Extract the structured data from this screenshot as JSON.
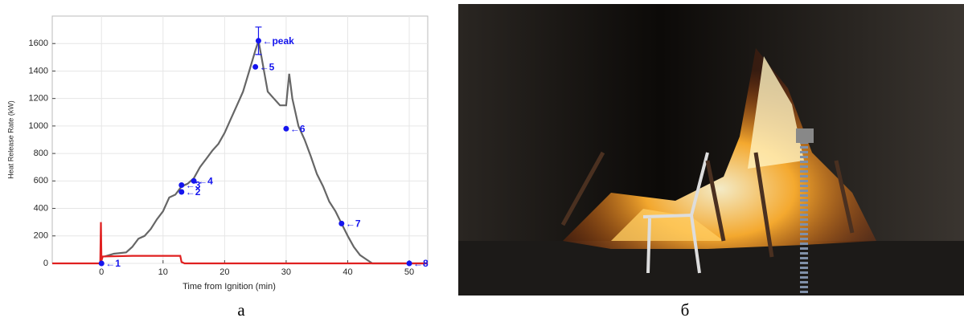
{
  "chart_data": {
    "type": "line",
    "xlabel": "Time from Ignition (min)",
    "ylabel": "Heat Release Rate (kW)",
    "xlim": [
      -8,
      53
    ],
    "ylim": [
      0,
      1800
    ],
    "xticks": [
      0,
      10,
      20,
      30,
      40,
      50
    ],
    "yticks": [
      0,
      200,
      400,
      600,
      800,
      1000,
      1200,
      1400,
      1600
    ],
    "grid": true,
    "series": [
      {
        "color": "#666666",
        "x": [
          0.5,
          2,
          4,
          5,
          6,
          7,
          8,
          9,
          10,
          11,
          12,
          13,
          14,
          15,
          16,
          17,
          18,
          19,
          20,
          21,
          22,
          23,
          24,
          25,
          25.5,
          26,
          27,
          28,
          29,
          30,
          30.5,
          31,
          32,
          33,
          34,
          35,
          36,
          37,
          38,
          39,
          40,
          41,
          42,
          43,
          44,
          53
        ],
        "values": [
          50,
          70,
          80,
          120,
          180,
          200,
          250,
          320,
          380,
          480,
          500,
          560,
          580,
          620,
          700,
          760,
          820,
          870,
          950,
          1050,
          1150,
          1250,
          1400,
          1550,
          1620,
          1500,
          1250,
          1200,
          1150,
          1150,
          1380,
          1200,
          1000,
          900,
          780,
          650,
          560,
          450,
          380,
          290,
          200,
          120,
          60,
          30,
          0,
          0
        ]
      },
      {
        "color": "#e02020",
        "x": [
          -8,
          -0.2,
          -0.1,
          0,
          0.2,
          5,
          12.8,
          13,
          13.5,
          53
        ],
        "values": [
          0,
          0,
          300,
          20,
          50,
          55,
          55,
          10,
          0,
          0
        ]
      }
    ],
    "points": {
      "color": "#1515ee",
      "x": [
        0,
        13,
        13,
        15,
        25,
        30,
        39,
        50,
        25.5
      ],
      "values": [
        0,
        520,
        570,
        600,
        1430,
        980,
        290,
        0,
        1620
      ],
      "labels": [
        "←1",
        "←2",
        "←3",
        "←4",
        "←5",
        "←6",
        "←7",
        "←8",
        "←peak"
      ],
      "errors": [
        null,
        null,
        null,
        null,
        null,
        null,
        null,
        null,
        100
      ]
    }
  },
  "captions": [
    "а",
    "б"
  ]
}
